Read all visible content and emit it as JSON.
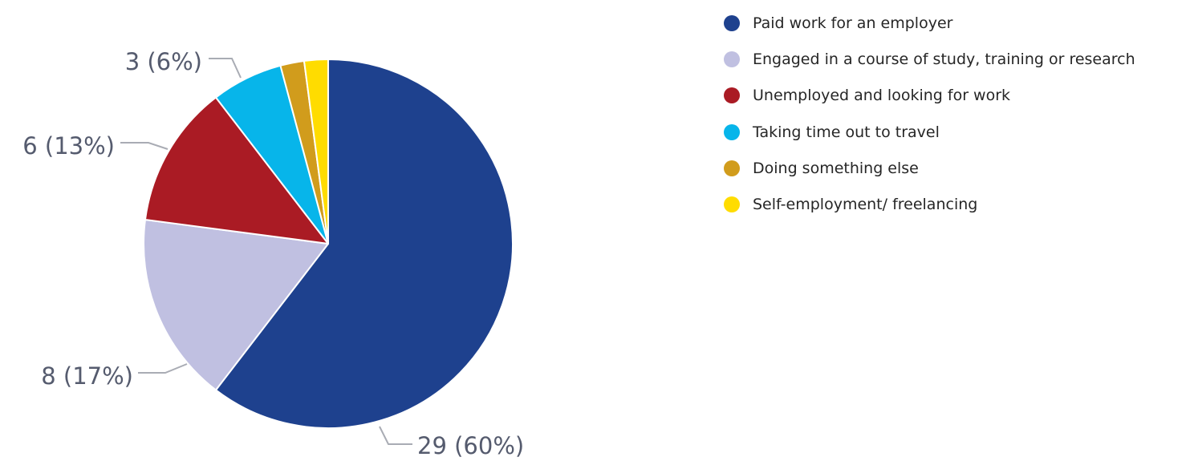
{
  "chart_data": {
    "type": "pie",
    "title": "",
    "start_angle": "12 o'clock",
    "direction": "clockwise",
    "legend_position": "right",
    "slices": [
      {
        "label": "Paid work for an employer",
        "value": 29,
        "percent": "60%",
        "display": "29 (60%)",
        "color": "#1e418e"
      },
      {
        "label": "Engaged in a course of study, training or research",
        "value": 8,
        "percent": "17%",
        "display": "8 (17%)",
        "color": "#c0c0e1"
      },
      {
        "label": "Unemployed and looking for work",
        "value": 6,
        "percent": "13%",
        "display": "6 (13%)",
        "color": "#aa1b24"
      },
      {
        "label": "Taking time out to travel",
        "value": 3,
        "percent": "6%",
        "display": "3 (6%)",
        "color": "#07b5ea"
      },
      {
        "label": "Doing something else",
        "value": 1,
        "percent": "",
        "display": "",
        "color": "#d19c1c"
      },
      {
        "label": "Self-employment/ freelancing",
        "value": 1,
        "percent": "",
        "display": "",
        "color": "#ffdc00"
      }
    ]
  }
}
